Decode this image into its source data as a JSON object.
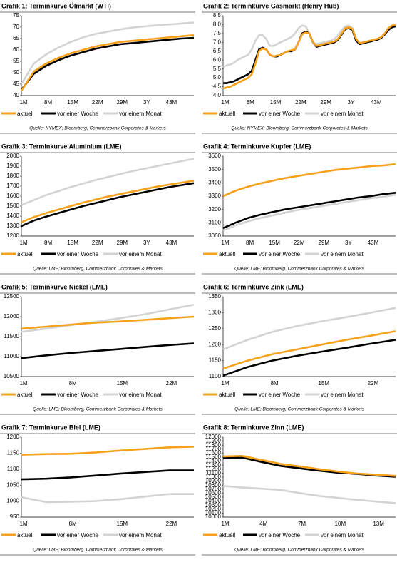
{
  "chart_data": [
    {
      "type": "line",
      "title": "Grafik 1: Terminkurve Ölmarkt (WTI)",
      "source": "Quelle: NYMEX; Bloomberg, Commerzbank Corporates & Markets",
      "categories": [
        "1M",
        null,
        "8M",
        null,
        "15M",
        null,
        "22M",
        null,
        "29M",
        null,
        "3Y",
        null,
        "43M",
        null,
        null
      ],
      "ylim": [
        40,
        75
      ],
      "yticks": [
        40,
        45,
        50,
        55,
        60,
        65,
        70,
        75
      ],
      "series": [
        {
          "name": "aktuell",
          "color": "#f5a11c",
          "values": [
            42,
            50.5,
            54,
            56.5,
            58.5,
            60,
            61.5,
            62.5,
            63.5,
            64,
            64.5,
            65,
            65.5,
            66,
            66.5
          ]
        },
        {
          "name": "vor einer Woche",
          "color": "#000000",
          "values": [
            42.5,
            49.5,
            53,
            55.5,
            57.5,
            59,
            60.5,
            61.5,
            62.5,
            63,
            63.5,
            64,
            64.5,
            65,
            65.3
          ]
        },
        {
          "name": "vor einem Monat",
          "color": "#d3d3d3",
          "values": [
            45,
            54,
            58,
            61,
            63.5,
            65.5,
            67,
            68,
            69,
            69.8,
            70.3,
            70.8,
            71.2,
            71.6,
            72
          ]
        }
      ]
    },
    {
      "type": "line",
      "title": "Grafik 2: Terminkurve Gasmarkt (Henry Hub)",
      "source": "Quelle: NYMEX; Bloomberg, Commerzbank Corporates & Markets",
      "categories": [
        "1M",
        null,
        null,
        null,
        null,
        null,
        null,
        "8M",
        null,
        null,
        null,
        null,
        null,
        null,
        "15M",
        null,
        null,
        null,
        null,
        null,
        null,
        "22M",
        null,
        null,
        null,
        null,
        null,
        null,
        "29M",
        null,
        null,
        null,
        null,
        null,
        null,
        "3Y",
        null,
        null,
        null,
        null,
        null,
        null,
        "43M",
        null,
        null,
        null,
        null,
        null,
        null
      ],
      "ylim": [
        4,
        8.5
      ],
      "yticks": [
        {
          "value": 4,
          "label": "4.0"
        },
        4.5,
        {
          "value": 5,
          "label": "5.0"
        },
        5.5,
        {
          "value": 6,
          "label": "6.0"
        },
        6.5,
        {
          "value": 7,
          "label": "7.0"
        },
        7.5,
        {
          "value": 8,
          "label": "8.0"
        },
        8.5
      ],
      "series": [
        {
          "name": "aktuell",
          "color": "#f5a11c",
          "values": [
            4.4,
            4.45,
            4.5,
            4.6,
            4.7,
            4.8,
            4.9,
            5.0,
            5.2,
            5.8,
            6.5,
            6.65,
            6.6,
            6.3,
            6.2,
            6.25,
            6.3,
            6.4,
            6.5,
            6.55,
            6.6,
            7.0,
            7.45,
            7.55,
            7.5,
            7.0,
            6.8,
            6.85,
            6.9,
            6.95,
            7.0,
            7.05,
            7.2,
            7.5,
            7.8,
            7.85,
            7.75,
            7.2,
            6.95,
            7.0,
            7.05,
            7.1,
            7.15,
            7.2,
            7.3,
            7.5,
            7.8,
            7.95,
            8.0
          ]
        },
        {
          "name": "vor einer Woche",
          "color": "#000000",
          "values": [
            4.7,
            4.7,
            4.75,
            4.8,
            4.9,
            5.0,
            5.1,
            5.2,
            5.4,
            6.0,
            6.6,
            6.7,
            6.6,
            6.3,
            6.2,
            6.2,
            6.3,
            6.4,
            6.5,
            6.5,
            6.6,
            7.0,
            7.5,
            7.6,
            7.5,
            7.0,
            6.75,
            6.8,
            6.85,
            6.9,
            6.95,
            7.0,
            7.15,
            7.45,
            7.75,
            7.8,
            7.7,
            7.1,
            6.9,
            6.95,
            7.0,
            7.05,
            7.1,
            7.15,
            7.25,
            7.45,
            7.7,
            7.85,
            7.9
          ]
        },
        {
          "name": "vor einem Monat",
          "color": "#d3d3d3",
          "values": [
            5.6,
            5.7,
            5.75,
            5.85,
            6.0,
            6.1,
            6.2,
            6.3,
            6.6,
            7.1,
            7.4,
            7.4,
            7.2,
            6.8,
            6.8,
            6.9,
            7.0,
            7.1,
            7.2,
            7.3,
            7.5,
            7.8,
            7.95,
            7.9,
            7.5,
            7.0,
            6.9,
            6.95,
            7.0,
            7.05,
            7.1,
            7.2,
            7.4,
            7.7,
            7.9,
            7.95,
            7.8,
            7.2,
            6.95,
            7.0,
            7.05,
            7.1,
            7.15,
            7.2,
            7.3,
            7.5,
            7.8,
            7.95,
            8.0
          ]
        }
      ]
    },
    {
      "type": "line",
      "title": "Grafik 3: Terminkurve Aluminium (LME)",
      "source": "Quelle: LME; Bloomberg, Commerzbank Corporates & Markets",
      "categories": [
        "1M",
        null,
        "8M",
        null,
        "15M",
        null,
        "22M",
        null,
        "29M",
        null,
        "3Y",
        null,
        "43M",
        null,
        null
      ],
      "ylim": [
        1200,
        2000
      ],
      "yticks": [
        1200,
        1300,
        1400,
        1500,
        1600,
        1700,
        1800,
        1900,
        2000
      ],
      "series": [
        {
          "name": "aktuell",
          "color": "#f5a11c",
          "values": [
            1340,
            1390,
            1430,
            1465,
            1500,
            1535,
            1565,
            1595,
            1620,
            1645,
            1670,
            1695,
            1715,
            1735,
            1755
          ]
        },
        {
          "name": "vor einer Woche",
          "color": "#000000",
          "values": [
            1300,
            1355,
            1395,
            1430,
            1465,
            1500,
            1530,
            1560,
            1590,
            1615,
            1640,
            1665,
            1690,
            1710,
            1730
          ]
        },
        {
          "name": "vor einem Monat",
          "color": "#d3d3d3",
          "values": [
            1510,
            1560,
            1610,
            1650,
            1690,
            1725,
            1760,
            1790,
            1820,
            1850,
            1875,
            1900,
            1925,
            1950,
            1975
          ]
        }
      ]
    },
    {
      "type": "line",
      "title": "Grafik 4: Terminkurve Kupfer (LME)",
      "source": "Quelle: LME; Bloomberg, Commerzbank Corporates & Markets",
      "categories": [
        "1M",
        null,
        "8M",
        null,
        "15M",
        null,
        "22M",
        null,
        "29M",
        null,
        "3Y",
        null,
        "43M",
        null,
        null
      ],
      "ylim": [
        3000,
        3600
      ],
      "yticks": [
        3000,
        3100,
        3200,
        3300,
        3400,
        3500,
        3600
      ],
      "series": [
        {
          "name": "aktuell",
          "color": "#f5a11c",
          "values": [
            3300,
            3340,
            3370,
            3395,
            3415,
            3435,
            3450,
            3465,
            3480,
            3495,
            3505,
            3515,
            3525,
            3530,
            3540
          ]
        },
        {
          "name": "vor einer Woche",
          "color": "#000000",
          "values": [
            3060,
            3100,
            3135,
            3160,
            3180,
            3200,
            3215,
            3230,
            3245,
            3260,
            3275,
            3290,
            3300,
            3315,
            3325
          ]
        },
        {
          "name": "vor einem Monat",
          "color": "#d3d3d3",
          "values": [
            3040,
            3080,
            3110,
            3135,
            3155,
            3175,
            3195,
            3210,
            3225,
            3240,
            3255,
            3270,
            3285,
            3295,
            3310
          ]
        }
      ]
    },
    {
      "type": "line",
      "title": "Grafik 5: Terminkurve Nickel (LME)",
      "source": "Quelle: LME; Bloomberg, Commerzbank Corporates & Markets",
      "categories": [
        "1M",
        null,
        "8M",
        null,
        "15M",
        null,
        "22M",
        null
      ],
      "ylim": [
        10500,
        12500
      ],
      "yticks": [
        10500,
        11000,
        11500,
        12000,
        12500
      ],
      "series": [
        {
          "name": "aktuell",
          "color": "#f5a11c",
          "values": [
            11700,
            11750,
            11800,
            11850,
            11880,
            11920,
            11960,
            12000
          ]
        },
        {
          "name": "vor einer Woche",
          "color": "#000000",
          "values": [
            10960,
            11030,
            11090,
            11140,
            11190,
            11240,
            11290,
            11330
          ]
        },
        {
          "name": "vor einem Monat",
          "color": "#d3d3d3",
          "values": [
            11620,
            11700,
            11790,
            11870,
            11960,
            12060,
            12180,
            12300
          ]
        }
      ]
    },
    {
      "type": "line",
      "title": "Grafik 6: Terminkurve Zink (LME)",
      "source": "Quelle: LME; Bloomberg, Commerzbank Corporates & Markets",
      "categories": [
        "1M",
        null,
        "8M",
        null,
        "15M",
        null,
        "22M",
        null
      ],
      "ylim": [
        1100,
        1350
      ],
      "yticks": [
        1100,
        1150,
        1200,
        1250,
        1300,
        1350
      ],
      "series": [
        {
          "name": "aktuell",
          "color": "#f5a11c",
          "values": [
            1125,
            1150,
            1170,
            1185,
            1200,
            1215,
            1228,
            1242
          ]
        },
        {
          "name": "vor einer Woche",
          "color": "#000000",
          "values": [
            1103,
            1130,
            1150,
            1165,
            1178,
            1190,
            1203,
            1215
          ]
        },
        {
          "name": "vor einem Monat",
          "color": "#d3d3d3",
          "values": [
            1185,
            1215,
            1240,
            1258,
            1273,
            1286,
            1300,
            1315
          ]
        }
      ]
    },
    {
      "type": "line",
      "title": "Grafik 7: Terminkurve Blei (LME)",
      "source": "Quelle: LME; Bloomberg, Commerzbank Corporates & Markets",
      "categories": [
        "1M",
        null,
        "8M",
        null,
        "15M",
        null,
        "22M",
        null
      ],
      "ylim": [
        950,
        1200
      ],
      "yticks": [
        950,
        1000,
        1050,
        1100,
        1150,
        1200
      ],
      "series": [
        {
          "name": "aktuell",
          "color": "#f5a11c",
          "values": [
            1145,
            1147,
            1148,
            1152,
            1158,
            1163,
            1168,
            1170
          ]
        },
        {
          "name": "vor einer Woche",
          "color": "#000000",
          "values": [
            1068,
            1070,
            1074,
            1080,
            1086,
            1091,
            1096,
            1096
          ]
        },
        {
          "name": "vor einem Monat",
          "color": "#d3d3d3",
          "values": [
            1012,
            997,
            998,
            1000,
            1006,
            1014,
            1022,
            1022
          ]
        }
      ]
    },
    {
      "type": "line",
      "title": "Grafik 8: Terminkurve Zinn (LME)",
      "source": "Quelle: LME; Bloomberg, Commerzbank Corporates & Markets",
      "categories": [
        "1M",
        null,
        "4M",
        null,
        "7M",
        null,
        "10M",
        null,
        "13M",
        null
      ],
      "ylim": [
        10000,
        12000
      ],
      "yticks": [
        10000,
        10100,
        10200,
        10300,
        10400,
        10500,
        10600,
        10700,
        10800,
        10900,
        11000,
        11100,
        11200,
        11300,
        11400,
        11500,
        11600,
        11700,
        11800,
        11900,
        12000
      ],
      "series": [
        {
          "name": "aktuell",
          "color": "#f5a11c",
          "values": [
            11520,
            11530,
            11430,
            11330,
            11270,
            11200,
            11140,
            11090,
            11060,
            11030
          ]
        },
        {
          "name": "vor einer Woche",
          "color": "#000000",
          "values": [
            11480,
            11490,
            11380,
            11280,
            11220,
            11160,
            11110,
            11080,
            11040,
            11010
          ]
        },
        {
          "name": "vor einem Monat",
          "color": "#d3d3d3",
          "values": [
            10780,
            10740,
            10710,
            10680,
            10600,
            10530,
            10480,
            10430,
            10390,
            10350
          ]
        }
      ]
    }
  ]
}
